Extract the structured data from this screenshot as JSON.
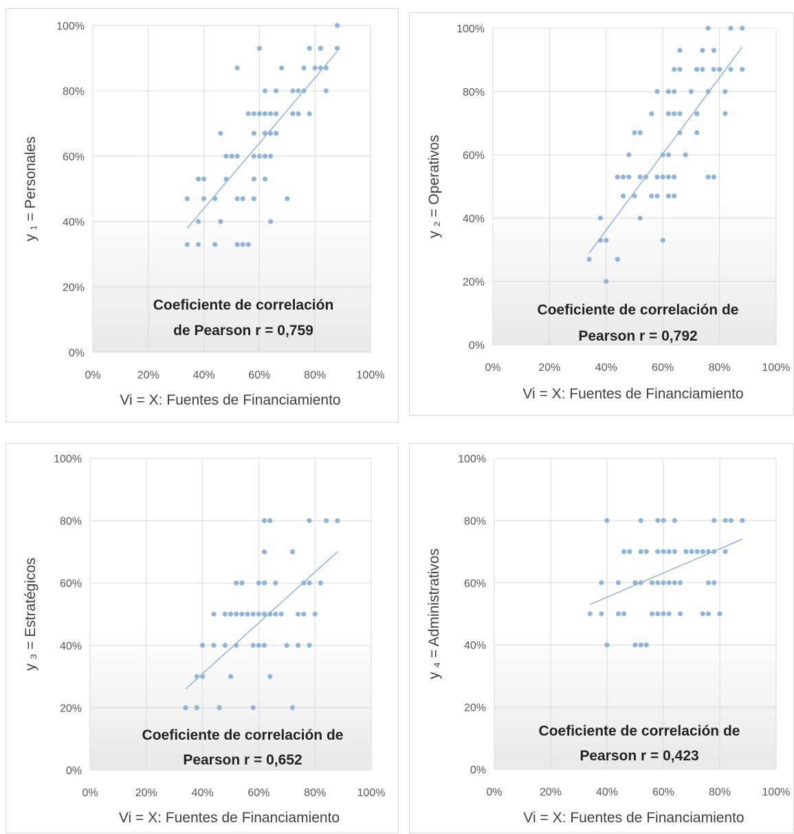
{
  "colors": {
    "point": "#8fb4dc",
    "trend": "#7fa9d6",
    "grid": "#d9d9d9",
    "gradient_top": "#ffffff",
    "gradient_bottom": "#e9e9e9"
  },
  "chart_data": [
    {
      "type": "scatter",
      "xlabel": "Vi = X: Fuentes de Financiamiento",
      "ylabel": "y ₁ = Personales",
      "annotation": [
        "Coeficiente de correlación",
        "de Pearson r = 0,759"
      ],
      "xlim": [
        0,
        100
      ],
      "ylim": [
        0,
        100
      ],
      "xticks": [
        "0%",
        "20%",
        "40%",
        "60%",
        "80%",
        "100%"
      ],
      "yticks": [
        "0%",
        "20%",
        "40%",
        "60%",
        "80%",
        "100%"
      ],
      "trendline": [
        [
          34,
          38
        ],
        [
          88,
          92
        ]
      ],
      "points": [
        [
          34,
          33
        ],
        [
          38,
          33
        ],
        [
          44,
          33
        ],
        [
          52,
          33
        ],
        [
          54,
          33
        ],
        [
          56,
          33
        ],
        [
          34,
          47
        ],
        [
          38,
          40
        ],
        [
          40,
          47
        ],
        [
          44,
          47
        ],
        [
          46,
          40
        ],
        [
          52,
          47
        ],
        [
          54,
          47
        ],
        [
          58,
          47
        ],
        [
          64,
          40
        ],
        [
          70,
          47
        ],
        [
          38,
          53
        ],
        [
          40,
          53
        ],
        [
          48,
          53
        ],
        [
          58,
          53
        ],
        [
          62,
          53
        ],
        [
          48,
          60
        ],
        [
          50,
          60
        ],
        [
          52,
          60
        ],
        [
          58,
          60
        ],
        [
          60,
          60
        ],
        [
          62,
          60
        ],
        [
          64,
          60
        ],
        [
          46,
          67
        ],
        [
          58,
          67
        ],
        [
          62,
          67
        ],
        [
          64,
          67
        ],
        [
          66,
          67
        ],
        [
          56,
          73
        ],
        [
          58,
          73
        ],
        [
          60,
          73
        ],
        [
          62,
          73
        ],
        [
          64,
          73
        ],
        [
          66,
          73
        ],
        [
          72,
          73
        ],
        [
          74,
          73
        ],
        [
          78,
          73
        ],
        [
          62,
          80
        ],
        [
          66,
          80
        ],
        [
          72,
          80
        ],
        [
          74,
          80
        ],
        [
          76,
          80
        ],
        [
          84,
          80
        ],
        [
          52,
          87
        ],
        [
          68,
          87
        ],
        [
          76,
          87
        ],
        [
          80,
          87
        ],
        [
          82,
          87
        ],
        [
          84,
          87
        ],
        [
          60,
          93
        ],
        [
          78,
          93
        ],
        [
          82,
          93
        ],
        [
          88,
          93
        ],
        [
          88,
          100
        ]
      ]
    },
    {
      "type": "scatter",
      "xlabel": "Vi = X: Fuentes de Financiamiento",
      "ylabel": "y ₂ = Operativos",
      "annotation": [
        "Coeficiente de correlación de",
        "Pearson r = 0,792"
      ],
      "xlim": [
        0,
        100
      ],
      "ylim": [
        0,
        100
      ],
      "xticks": [
        "0%",
        "20%",
        "40%",
        "60%",
        "80%",
        "100%"
      ],
      "yticks": [
        "0%",
        "20%",
        "40%",
        "60%",
        "80%",
        "100%"
      ],
      "trendline": [
        [
          34,
          29
        ],
        [
          88,
          94
        ]
      ],
      "points": [
        [
          40,
          20
        ],
        [
          34,
          27
        ],
        [
          44,
          27
        ],
        [
          38,
          33
        ],
        [
          40,
          33
        ],
        [
          60,
          33
        ],
        [
          38,
          40
        ],
        [
          52,
          40
        ],
        [
          46,
          47
        ],
        [
          50,
          47
        ],
        [
          56,
          47
        ],
        [
          58,
          47
        ],
        [
          62,
          47
        ],
        [
          64,
          47
        ],
        [
          44,
          53
        ],
        [
          46,
          53
        ],
        [
          48,
          53
        ],
        [
          52,
          53
        ],
        [
          54,
          53
        ],
        [
          58,
          53
        ],
        [
          60,
          53
        ],
        [
          62,
          53
        ],
        [
          64,
          53
        ],
        [
          76,
          53
        ],
        [
          78,
          53
        ],
        [
          48,
          60
        ],
        [
          60,
          60
        ],
        [
          62,
          60
        ],
        [
          68,
          60
        ],
        [
          50,
          67
        ],
        [
          52,
          67
        ],
        [
          66,
          67
        ],
        [
          72,
          67
        ],
        [
          56,
          73
        ],
        [
          62,
          73
        ],
        [
          64,
          73
        ],
        [
          66,
          73
        ],
        [
          72,
          73
        ],
        [
          82,
          73
        ],
        [
          58,
          80
        ],
        [
          62,
          80
        ],
        [
          64,
          80
        ],
        [
          70,
          80
        ],
        [
          76,
          80
        ],
        [
          82,
          80
        ],
        [
          64,
          87
        ],
        [
          66,
          87
        ],
        [
          72,
          87
        ],
        [
          74,
          87
        ],
        [
          78,
          87
        ],
        [
          80,
          87
        ],
        [
          84,
          87
        ],
        [
          88,
          87
        ],
        [
          66,
          93
        ],
        [
          74,
          93
        ],
        [
          78,
          93
        ],
        [
          76,
          100
        ],
        [
          84,
          100
        ],
        [
          88,
          100
        ]
      ]
    },
    {
      "type": "scatter",
      "xlabel": "Vi = X: Fuentes de Financiamiento",
      "ylabel": "y ₃ = Estratégicos",
      "annotation": [
        "Coeficiente de correlación de",
        "Pearson r = 0,652"
      ],
      "xlim": [
        0,
        100
      ],
      "ylim": [
        0,
        100
      ],
      "xticks": [
        "0%",
        "20%",
        "40%",
        "60%",
        "80%",
        "100%"
      ],
      "yticks": [
        "0%",
        "20%",
        "40%",
        "60%",
        "80%",
        "100%"
      ],
      "trendline": [
        [
          34,
          26
        ],
        [
          88,
          70
        ]
      ],
      "points": [
        [
          34,
          20
        ],
        [
          38,
          20
        ],
        [
          46,
          20
        ],
        [
          58,
          20
        ],
        [
          72,
          20
        ],
        [
          38,
          30
        ],
        [
          40,
          30
        ],
        [
          50,
          30
        ],
        [
          64,
          30
        ],
        [
          40,
          40
        ],
        [
          44,
          40
        ],
        [
          48,
          40
        ],
        [
          52,
          40
        ],
        [
          58,
          40
        ],
        [
          60,
          40
        ],
        [
          62,
          40
        ],
        [
          70,
          40
        ],
        [
          74,
          40
        ],
        [
          78,
          40
        ],
        [
          44,
          50
        ],
        [
          48,
          50
        ],
        [
          50,
          50
        ],
        [
          52,
          50
        ],
        [
          54,
          50
        ],
        [
          56,
          50
        ],
        [
          58,
          50
        ],
        [
          60,
          50
        ],
        [
          62,
          50
        ],
        [
          64,
          50
        ],
        [
          66,
          50
        ],
        [
          68,
          50
        ],
        [
          74,
          50
        ],
        [
          76,
          50
        ],
        [
          80,
          50
        ],
        [
          52,
          60
        ],
        [
          54,
          60
        ],
        [
          60,
          60
        ],
        [
          62,
          60
        ],
        [
          66,
          60
        ],
        [
          76,
          60
        ],
        [
          78,
          60
        ],
        [
          82,
          60
        ],
        [
          62,
          70
        ],
        [
          72,
          70
        ],
        [
          62,
          80
        ],
        [
          64,
          80
        ],
        [
          78,
          80
        ],
        [
          84,
          80
        ],
        [
          88,
          80
        ]
      ]
    },
    {
      "type": "scatter",
      "xlabel": "Vi = X: Fuentes de Financiamiento",
      "ylabel": "y ₄ = Administrativos",
      "annotation": [
        "Coeficiente de correlación de",
        "Pearson r = 0,423"
      ],
      "xlim": [
        0,
        100
      ],
      "ylim": [
        0,
        100
      ],
      "xticks": [
        "0%",
        "20%",
        "40%",
        "60%",
        "80%",
        "100%"
      ],
      "yticks": [
        "0%",
        "20%",
        "40%",
        "60%",
        "80%",
        "100%"
      ],
      "trendline": [
        [
          34,
          53
        ],
        [
          88,
          74
        ]
      ],
      "points": [
        [
          40,
          40
        ],
        [
          50,
          40
        ],
        [
          52,
          40
        ],
        [
          54,
          40
        ],
        [
          34,
          50
        ],
        [
          38,
          50
        ],
        [
          44,
          50
        ],
        [
          46,
          50
        ],
        [
          56,
          50
        ],
        [
          58,
          50
        ],
        [
          60,
          50
        ],
        [
          62,
          50
        ],
        [
          66,
          50
        ],
        [
          74,
          50
        ],
        [
          76,
          50
        ],
        [
          80,
          50
        ],
        [
          38,
          60
        ],
        [
          44,
          60
        ],
        [
          50,
          60
        ],
        [
          52,
          60
        ],
        [
          56,
          60
        ],
        [
          58,
          60
        ],
        [
          60,
          60
        ],
        [
          62,
          60
        ],
        [
          64,
          60
        ],
        [
          66,
          60
        ],
        [
          76,
          60
        ],
        [
          78,
          60
        ],
        [
          46,
          70
        ],
        [
          48,
          70
        ],
        [
          52,
          70
        ],
        [
          54,
          70
        ],
        [
          58,
          70
        ],
        [
          60,
          70
        ],
        [
          62,
          70
        ],
        [
          64,
          70
        ],
        [
          68,
          70
        ],
        [
          70,
          70
        ],
        [
          72,
          70
        ],
        [
          74,
          70
        ],
        [
          76,
          70
        ],
        [
          78,
          70
        ],
        [
          82,
          70
        ],
        [
          40,
          80
        ],
        [
          52,
          80
        ],
        [
          58,
          80
        ],
        [
          60,
          80
        ],
        [
          64,
          80
        ],
        [
          78,
          80
        ],
        [
          82,
          80
        ],
        [
          84,
          80
        ],
        [
          88,
          80
        ]
      ]
    }
  ]
}
